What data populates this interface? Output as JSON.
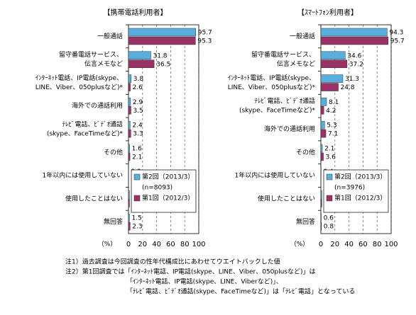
{
  "chart_data": [
    {
      "type": "bar",
      "orientation": "horizontal",
      "title": "【携帯電話利用者】",
      "categories": [
        [
          "一般通話"
        ],
        [
          "留守番電話サービス、",
          "伝言メモなど"
        ],
        [
          "ｲﾝﾀｰﾈｯﾄ電話、IP電話(skype、",
          "LINE、Viber、050plusなど)*"
        ],
        [
          "海外での通話利用"
        ],
        [
          "ﾃﾚﾋﾞ電話、ﾋﾞﾃﾞｵ通話",
          "(skype、FaceTimeなど)*"
        ],
        [
          "その他"
        ],
        [
          "1年以内には使用していない"
        ],
        [
          "使用したことはない"
        ],
        [
          "無回答"
        ]
      ],
      "series": [
        {
          "name": "第2回（2013/3）",
          "color": "#5aaede",
          "values": [
            95.7,
            31.8,
            3.8,
            2.9,
            2.4,
            1.6,
            0.3,
            1.5,
            1.5
          ]
        },
        {
          "name": "第1回（2012/3）",
          "color": "#993366",
          "values": [
            95.3,
            36.5,
            2.6,
            3.5,
            3.3,
            2.1,
            0.3,
            1.5,
            2.3
          ]
        }
      ],
      "sample_label": "(n=8093)",
      "unit_label": "（%）",
      "xlim": [
        0,
        100
      ],
      "xticks": [
        0,
        20,
        40,
        60,
        80,
        100
      ],
      "grid": true
    },
    {
      "type": "bar",
      "orientation": "horizontal",
      "title": "【ｽﾏｰﾄﾌｫﾝ利用者】",
      "categories": [
        [
          "一般通話"
        ],
        [
          "留守番電話サービス、",
          "伝言メモなど"
        ],
        [
          "ｲﾝﾀｰﾈｯﾄ電話、IP電話(skype、",
          "LINE、Viber、050plusなど)*"
        ],
        [
          "ﾃﾚﾋﾞ電話、ﾋﾞﾃﾞｵ通話",
          "(skype、FaceTimeなど)*"
        ],
        [
          "海外での通話利用"
        ],
        [
          "その他"
        ],
        [
          "1年以内には使用していない"
        ],
        [
          "使用したことはない"
        ],
        [
          "無回答"
        ]
      ],
      "series": [
        {
          "name": "第2回（2013/3）",
          "color": "#5aaede",
          "values": [
            94.3,
            34.6,
            31.3,
            8.1,
            5.3,
            2.1,
            0.4,
            1.4,
            0.6
          ]
        },
        {
          "name": "第1回（2012/3）",
          "color": "#993366",
          "values": [
            95.7,
            37.2,
            24.8,
            4.2,
            7.1,
            3.6,
            0.3,
            1.4,
            0.8
          ]
        }
      ],
      "sample_label": "(n=3976)",
      "unit_label": "（%）",
      "xlim": [
        0,
        100
      ],
      "xticks": [
        0,
        20,
        40,
        60,
        80,
        100
      ],
      "grid": true
    }
  ],
  "notes": [
    "注1）過去調査は今回調査の性年代構成比にあわせてウエイトバックした値",
    "注2）第1回調査では「ｲﾝﾀｰﾈｯﾄ電話、IP電話(skype、LINE、Viber、050plusなど)」は",
    "「ｲﾝﾀｰﾈｯﾄ電話、IP電話(skype、LINE、Viberなど)」、",
    "「ﾃﾚﾋﾞ電話、ﾋﾞﾃﾞｵ通話(skype、FaceTimeなど)」は「ﾃﾚﾋﾞ電話」となっている"
  ]
}
